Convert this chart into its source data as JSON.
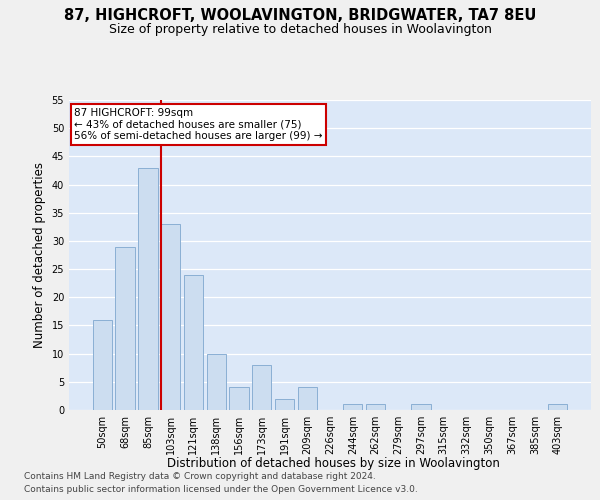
{
  "title": "87, HIGHCROFT, WOOLAVINGTON, BRIDGWATER, TA7 8EU",
  "subtitle": "Size of property relative to detached houses in Woolavington",
  "xlabel": "Distribution of detached houses by size in Woolavington",
  "ylabel": "Number of detached properties",
  "categories": [
    "50sqm",
    "68sqm",
    "85sqm",
    "103sqm",
    "121sqm",
    "138sqm",
    "156sqm",
    "173sqm",
    "191sqm",
    "209sqm",
    "226sqm",
    "244sqm",
    "262sqm",
    "279sqm",
    "297sqm",
    "315sqm",
    "332sqm",
    "350sqm",
    "367sqm",
    "385sqm",
    "403sqm"
  ],
  "values": [
    16,
    29,
    43,
    33,
    24,
    10,
    4,
    8,
    2,
    4,
    0,
    1,
    1,
    0,
    1,
    0,
    0,
    0,
    0,
    0,
    1
  ],
  "bar_color": "#ccddf0",
  "bar_edge_color": "#8aafd4",
  "background_color": "#dce8f8",
  "grid_color": "#ffffff",
  "vline_color": "#cc0000",
  "annotation_box_color": "#ffffff",
  "annotation_box_edge": "#cc0000",
  "footer_line1": "Contains HM Land Registry data © Crown copyright and database right 2024.",
  "footer_line2": "Contains public sector information licensed under the Open Government Licence v3.0.",
  "ylim": [
    0,
    55
  ],
  "yticks": [
    0,
    5,
    10,
    15,
    20,
    25,
    30,
    35,
    40,
    45,
    50,
    55
  ],
  "title_fontsize": 10.5,
  "subtitle_fontsize": 9,
  "axis_label_fontsize": 8.5,
  "tick_fontsize": 7,
  "footer_fontsize": 6.5,
  "annotation_fontsize": 7.5
}
